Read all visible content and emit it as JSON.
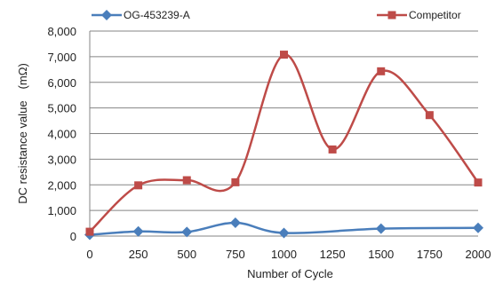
{
  "chart_data": {
    "type": "line",
    "title": "",
    "xlabel": "Number of Cycle",
    "ylabel": "DC resistance value　(mΩ)",
    "x": [
      0,
      250,
      500,
      750,
      1000,
      1250,
      1500,
      1750,
      2000
    ],
    "xticks": [
      "0",
      "250",
      "500",
      "750",
      "1000",
      "1250",
      "1500",
      "1750",
      "2000"
    ],
    "ylim": [
      0,
      8000
    ],
    "yticks": [
      "0",
      "1,000",
      "2,000",
      "3,000",
      "4,000",
      "5,000",
      "6,000",
      "7,000",
      "8,000"
    ],
    "grid": true,
    "legend_position": "top",
    "series": [
      {
        "name": "OG-453239-A",
        "color": "#4a7ebb",
        "marker": "diamond",
        "x": [
          0,
          250,
          500,
          750,
          1000,
          1500,
          2000
        ],
        "values": [
          50,
          180,
          160,
          520,
          120,
          290,
          320
        ]
      },
      {
        "name": "Competitor",
        "color": "#be4b48",
        "marker": "square",
        "x": [
          0,
          250,
          500,
          750,
          1000,
          1250,
          1500,
          1750,
          2000
        ],
        "values": [
          170,
          1980,
          2180,
          2100,
          7080,
          3380,
          6430,
          4720,
          2090
        ]
      }
    ]
  }
}
